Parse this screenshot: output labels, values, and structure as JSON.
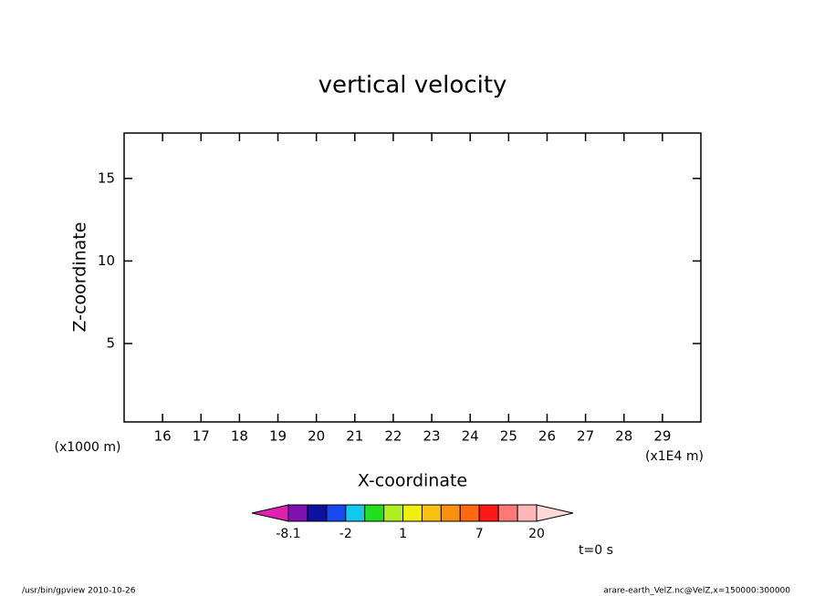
{
  "chart_data": {
    "type": "contour",
    "title": "vertical velocity",
    "xlabel": "X-coordinate",
    "ylabel": "Z-coordinate",
    "xunit": "(x1E4 m)",
    "yunit": "(x1000 m)",
    "xlim": [
      15,
      30
    ],
    "xticks": [
      16,
      17,
      18,
      19,
      20,
      21,
      22,
      23,
      24,
      25,
      26,
      27,
      28,
      29
    ],
    "ylim": [
      0.25,
      17.75
    ],
    "yticks": [
      5,
      10,
      15
    ],
    "colorbar": {
      "colors": [
        "#e020b0",
        "#8010b0",
        "#1010a0",
        "#1848f0",
        "#10c8f0",
        "#20e020",
        "#b0f020",
        "#f0f010",
        "#f8c010",
        "#f89010",
        "#ff6a10",
        "#ff1818",
        "#ff7878",
        "#ffb8b8",
        "#ffd8d8"
      ],
      "labels": [
        -8.1,
        -2,
        1,
        7,
        20
      ]
    },
    "annotation": "t=0 s",
    "footer_left": "/usr/bin/gpview   2010-10-26",
    "footer_right": "arare-earth_VelZ.nc@VelZ,x=150000:300000"
  }
}
